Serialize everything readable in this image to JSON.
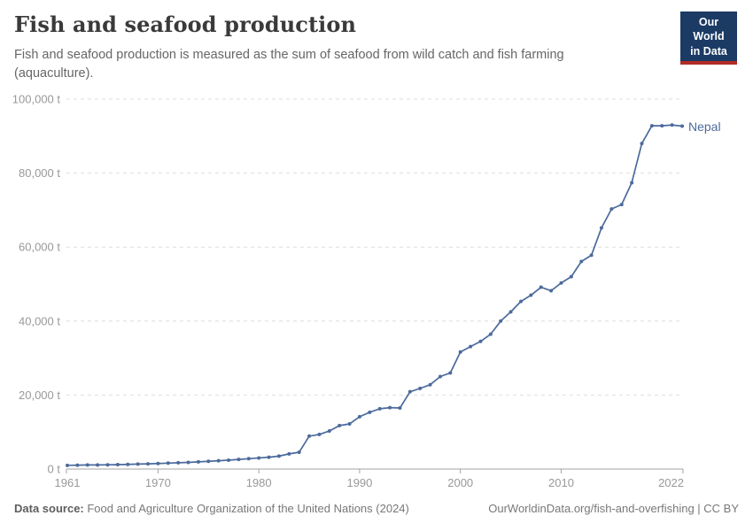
{
  "header": {
    "title": "Fish and seafood production",
    "subtitle": "Fish and seafood production is measured as the sum of seafood from wild catch and fish farming (aquaculture)."
  },
  "logo": {
    "line1": "Our World",
    "line2": "in Data",
    "navy": "#1b3a64",
    "red": "#b22b25"
  },
  "series_end_label": "Nepal",
  "footer": {
    "datasource_label": "Data source:",
    "datasource_text": " Food and Agriculture Organization of the United Nations (2024)",
    "link_text": "OurWorldinData.org/fish-and-overfishing | CC BY"
  },
  "chart_data": {
    "type": "line",
    "title": "Fish and seafood production",
    "entity": "Nepal",
    "unit": "t",
    "xlabel": "",
    "ylabel": "",
    "xlim": [
      1961,
      2022
    ],
    "ylim": [
      0,
      100000
    ],
    "grid": "dashed-horizontal",
    "legend_position": "line-end-label",
    "line_color": "#4c6a9c",
    "axis_text_color": "#999999",
    "grid_color": "#dedede",
    "axis_line_color": "#a3a3a3",
    "yticks": [
      {
        "value": 0,
        "label": "0 t"
      },
      {
        "value": 20000,
        "label": "20,000 t"
      },
      {
        "value": 40000,
        "label": "40,000 t"
      },
      {
        "value": 60000,
        "label": "60,000 t"
      },
      {
        "value": 80000,
        "label": "80,000 t"
      },
      {
        "value": 100000,
        "label": "100,000 t"
      }
    ],
    "xticks": [
      {
        "value": 1961,
        "label": "1961"
      },
      {
        "value": 1970,
        "label": "1970"
      },
      {
        "value": 1980,
        "label": "1980"
      },
      {
        "value": 1990,
        "label": "1990"
      },
      {
        "value": 2000,
        "label": "2000"
      },
      {
        "value": 2010,
        "label": "2010"
      },
      {
        "value": 2022,
        "label": "2022"
      }
    ],
    "x": [
      1961,
      1962,
      1963,
      1964,
      1965,
      1966,
      1967,
      1968,
      1969,
      1970,
      1971,
      1972,
      1973,
      1974,
      1975,
      1976,
      1977,
      1978,
      1979,
      1980,
      1981,
      1982,
      1983,
      1984,
      1985,
      1986,
      1987,
      1988,
      1989,
      1990,
      1991,
      1992,
      1993,
      1994,
      1995,
      1996,
      1997,
      1998,
      1999,
      2000,
      2001,
      2002,
      2003,
      2004,
      2005,
      2006,
      2007,
      2008,
      2009,
      2010,
      2011,
      2012,
      2013,
      2014,
      2015,
      2016,
      2017,
      2018,
      2019,
      2020,
      2021,
      2022
    ],
    "series": [
      {
        "name": "Nepal",
        "values": [
          1000,
          1050,
          1100,
          1100,
          1150,
          1200,
          1250,
          1350,
          1400,
          1500,
          1600,
          1700,
          1800,
          1950,
          2100,
          2250,
          2400,
          2600,
          2800,
          3000,
          3200,
          3500,
          4100,
          4550,
          8900,
          9350,
          10300,
          11750,
          12200,
          14150,
          15350,
          16300,
          16600,
          16500,
          20900,
          21800,
          22800,
          25000,
          26000,
          31650,
          33100,
          34500,
          36450,
          40000,
          42500,
          45300,
          47000,
          49150,
          48200,
          50300,
          52000,
          56100,
          57800,
          65200,
          70300,
          71500,
          77400,
          88000,
          92800,
          92800,
          93000,
          92700
        ]
      }
    ]
  }
}
